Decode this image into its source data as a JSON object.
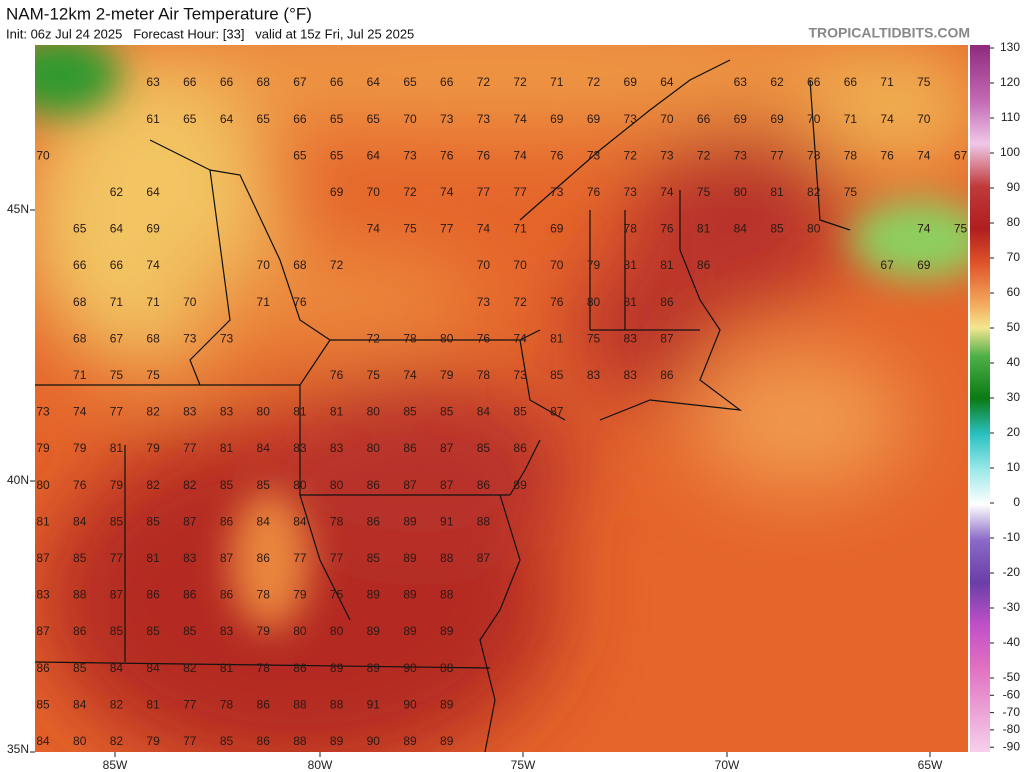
{
  "header": {
    "title": "NAM-12km 2-meter Air Temperature (°F)",
    "subtitle": "Init: 06z Jul 24 2025   Forecast Hour: [33]   valid at 15z Fri, Jul 25 2025",
    "site": "TROPICALTIDBITS.COM"
  },
  "axes": {
    "longitudes": [
      "85W",
      "80W",
      "75W",
      "70W",
      "65W"
    ],
    "latitudes": [
      "45N",
      "40N",
      "35N"
    ]
  },
  "colorbar": {
    "ticks": [
      130,
      120,
      110,
      100,
      90,
      80,
      70,
      60,
      50,
      40,
      30,
      20,
      10,
      0,
      -10,
      -20,
      -30,
      -40,
      -50,
      -60,
      -70,
      -80,
      -90
    ]
  },
  "temperature_rows": [
    [
      63,
      66,
      66,
      68,
      67,
      66,
      64,
      65,
      66,
      72,
      72,
      71,
      72,
      69,
      64,
      63,
      62,
      66,
      66,
      71,
      75
    ],
    [
      61,
      65,
      64,
      65,
      66,
      65,
      65,
      70,
      73,
      73,
      74,
      69,
      69,
      73,
      70,
      66,
      69,
      69,
      70,
      71,
      74,
      70
    ],
    [
      70,
      65,
      65,
      64,
      73,
      76,
      76,
      74,
      76,
      73,
      72,
      73,
      72,
      73,
      77,
      78,
      78,
      76,
      74,
      67
    ],
    [
      62,
      64,
      69,
      70,
      72,
      74,
      77,
      77,
      73,
      76,
      73,
      74,
      75,
      80,
      81,
      82,
      75
    ],
    [
      65,
      64,
      69,
      74,
      75,
      77,
      74,
      71,
      69,
      78,
      76,
      81,
      84,
      85,
      80,
      74,
      75
    ],
    [
      66,
      66,
      74,
      70,
      68,
      72,
      70,
      70,
      70,
      79,
      81,
      81,
      86,
      67,
      69
    ],
    [
      68,
      71,
      71,
      70,
      71,
      76,
      73,
      72,
      76,
      80,
      81,
      86
    ],
    [
      68,
      67,
      68,
      73,
      73,
      72,
      78,
      80,
      76,
      74,
      81,
      75,
      83,
      87
    ],
    [
      71,
      75,
      75,
      76,
      75,
      74,
      79,
      78,
      73,
      85,
      83,
      83,
      86
    ],
    [
      73,
      74,
      77,
      82,
      83,
      83,
      80,
      81,
      81,
      80,
      85,
      85,
      84,
      85,
      87
    ],
    [
      79,
      79,
      81,
      79,
      77,
      81,
      84,
      83,
      83,
      80,
      86,
      87,
      85,
      86
    ],
    [
      80,
      76,
      79,
      82,
      82,
      85,
      85,
      80,
      80,
      86,
      87,
      87,
      86,
      89
    ],
    [
      81,
      84,
      85,
      85,
      87,
      86,
      84,
      84,
      78,
      86,
      89,
      91,
      88
    ],
    [
      87,
      85,
      77,
      81,
      83,
      87,
      86,
      77,
      77,
      85,
      89,
      88,
      87
    ],
    [
      83,
      88,
      87,
      86,
      86,
      86,
      78,
      79,
      75,
      89,
      89,
      88
    ],
    [
      87,
      86,
      85,
      85,
      85,
      83,
      79,
      80,
      80,
      89,
      89,
      89
    ],
    [
      86,
      85,
      84,
      84,
      82,
      81,
      78,
      86,
      89,
      89,
      90,
      88
    ],
    [
      85,
      84,
      82,
      81,
      77,
      78,
      86,
      88,
      88,
      91,
      90,
      89
    ],
    [
      84,
      80,
      82,
      79,
      77,
      85,
      86,
      88,
      89,
      90,
      89,
      89
    ]
  ]
}
